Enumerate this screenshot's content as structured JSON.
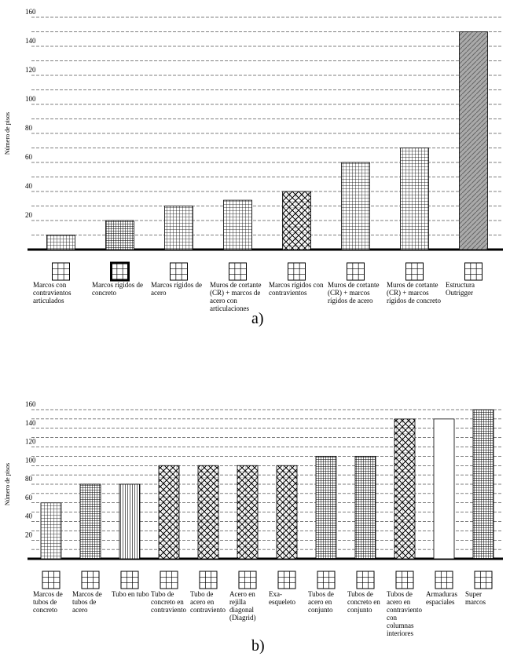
{
  "chart_data": [
    {
      "type": "bar",
      "panel_label": "a)",
      "y_label": "Número de pisos",
      "categories": [
        "Marcos con contravientos articulados",
        "Marcos rígidos de concreto",
        "Marcos rígidos de acero",
        "Muros de cortante (CR) + marcos de acero con articulaciones",
        "Marcos rígidos con contravientos",
        "Muros de cortante (CR) + marcos rígidos de acero",
        "Muros de cortante (CR) + marcos rígidos de concreto",
        "Estructura Outrigger"
      ],
      "values": [
        10,
        20,
        30,
        34,
        40,
        60,
        70,
        150
      ],
      "ylim": [
        0,
        160
      ],
      "yticks": [
        20,
        40,
        60,
        80,
        100,
        120,
        140,
        160
      ],
      "grid": true
    },
    {
      "type": "bar",
      "panel_label": "b)",
      "y_label": "Número de pisos",
      "categories": [
        "Marcos de tubos de concreto",
        "Marcos de tubos de acero",
        "Tubo en tubo",
        "Tubo de concreto en contraviento",
        "Tubo de acero en contraviento",
        "Acero en rejilla diagonal (Diagrid)",
        "Exa-esqueleto",
        "Tubos de acero en conjunto",
        "Tubos de concreto en conjunto",
        "Tubos de acero en contraviento con columnas interiores",
        "Armaduras espaciales",
        "Super marcos"
      ],
      "values": [
        60,
        80,
        80,
        100,
        100,
        100,
        100,
        110,
        110,
        150,
        150,
        160
      ],
      "ylim": [
        0,
        160
      ],
      "yticks": [
        20,
        40,
        60,
        80,
        100,
        120,
        140,
        160
      ],
      "grid": true
    }
  ]
}
